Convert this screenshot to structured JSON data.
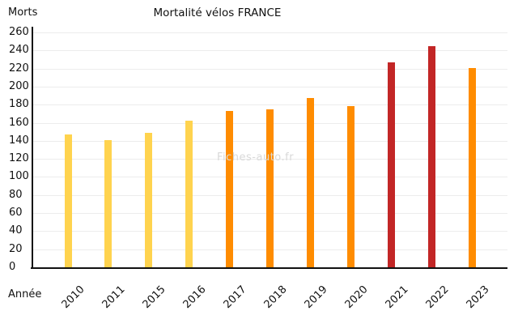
{
  "header": {
    "y_axis_title": "Morts",
    "chart_title": "Mortalité vélos FRANCE"
  },
  "footer": {
    "x_axis_title": "Année"
  },
  "watermark_text": "Fiches-auto.fr",
  "chart_data": {
    "type": "bar",
    "title": "Mortalité vélos FRANCE",
    "xlabel": "Année",
    "ylabel": "Morts",
    "categories": [
      "2010",
      "2011",
      "2015",
      "2016",
      "2017",
      "2018",
      "2019",
      "2020",
      "2021",
      "2022",
      "2023"
    ],
    "values": [
      147,
      141,
      149,
      162,
      173,
      175,
      187,
      178,
      227,
      245,
      221
    ],
    "bar_colors": [
      "#FFD34E",
      "#FFD34E",
      "#FFD34E",
      "#FFD34E",
      "#FF8C00",
      "#FF8C00",
      "#FF8C00",
      "#FF8C00",
      "#C22626",
      "#C22626",
      "#FF8C00"
    ],
    "color_groups": {
      "light_yellow": "#FFD34E",
      "orange": "#FF8C00",
      "dark_red": "#C22626"
    },
    "ylim": [
      0,
      260
    ],
    "ytick_step": 20,
    "grid": true,
    "gridline_color": "#ececec",
    "legend": "none",
    "xtick_rotation_deg": 45
  }
}
